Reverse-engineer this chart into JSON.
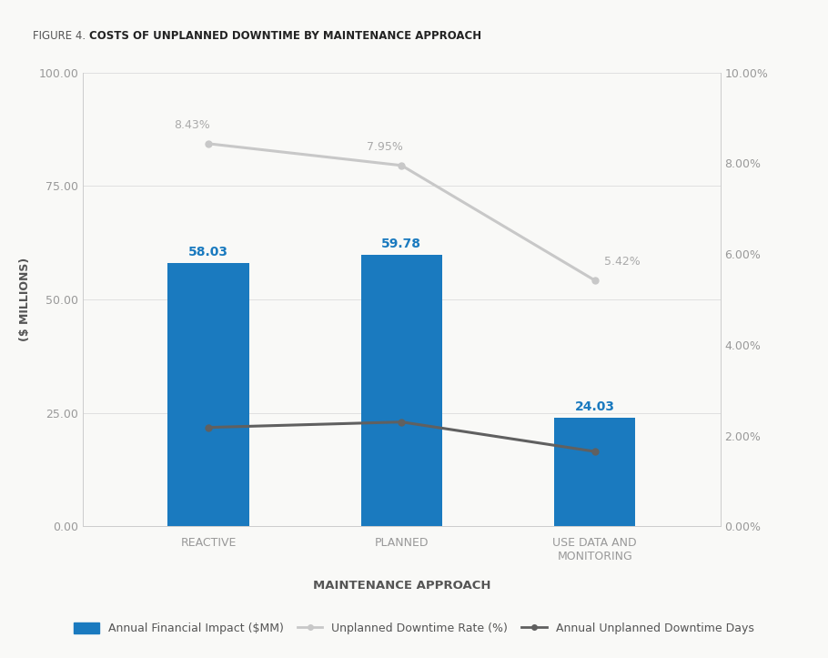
{
  "categories": [
    "REACTIVE",
    "PLANNED",
    "USE DATA AND\nMONITORING"
  ],
  "bar_values": [
    58.03,
    59.78,
    24.03
  ],
  "bar_color": "#1a7abf",
  "bar_labels": [
    "58.03",
    "59.78",
    "24.03"
  ],
  "downtime_rate": [
    8.43,
    7.95,
    5.42
  ],
  "downtime_rate_labels": [
    "8.43%",
    "7.95%",
    "5.42%"
  ],
  "downtime_days": [
    2.18,
    2.3,
    1.65
  ],
  "ylabel_left": "($ MILLIONS)",
  "xlabel": "MAINTENANCE APPROACH",
  "ylim_left": [
    0,
    100
  ],
  "ylim_right": [
    0,
    10
  ],
  "yticks_left": [
    0,
    25,
    50,
    75,
    100
  ],
  "ytick_labels_left": [
    "0.00",
    "25.00",
    "50.00",
    "75.00",
    "100.00"
  ],
  "yticks_right": [
    0,
    2,
    4,
    6,
    8,
    10
  ],
  "ytick_labels_right": [
    "0.00%",
    "2.00%",
    "4.00%",
    "6.00%",
    "8.00%",
    "10.00%"
  ],
  "line_rate_color": "#c8c8c8",
  "line_days_color": "#606060",
  "background_color": "#f9f9f7",
  "legend_bar_label": "Annual Financial Impact ($MM)",
  "legend_rate_label": "Unplanned Downtime Rate (%)",
  "legend_days_label": "Annual Unplanned Downtime Days",
  "title_prefix": "FIGURE 4. ",
  "title_bold": "COSTS OF UNPLANNED DOWNTIME BY MAINTENANCE APPROACH"
}
